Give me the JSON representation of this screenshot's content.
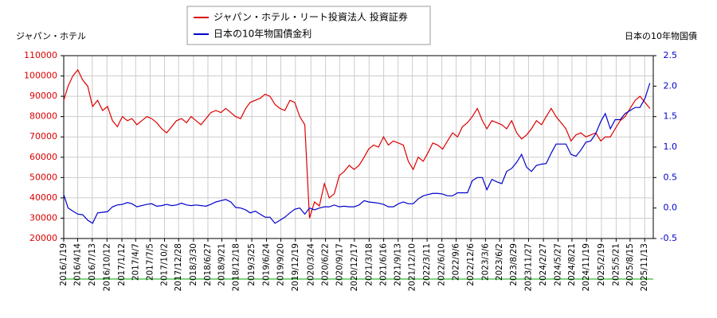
{
  "chart_data": {
    "type": "line",
    "legend_position": "top",
    "grid": true,
    "y_label": "ジャパン・ホテル",
    "y2_label": "日本の10年物国債",
    "xlim": [
      "2016/1/19",
      "2026/1/5"
    ],
    "xticks": [
      "2016/1/19",
      "2016/4/14",
      "2016/7/13",
      "2016/10/12",
      "2017/1/12",
      "2017/4/7",
      "2017/7/5",
      "2017/10/2",
      "2017/12/28",
      "2018/3/30",
      "2018/6/27",
      "2018/9/21",
      "2018/12/18",
      "2019/3/25",
      "2019/6/24",
      "2019/9/20",
      "2019/12/19",
      "2020/3/24",
      "2020/6/22",
      "2020/9/17",
      "2020/12/17",
      "2021/3/18",
      "2021/6/16",
      "2021/9/13",
      "2021/12/10",
      "2022/3/11",
      "2022/6/10",
      "2022/9/6",
      "2022/12/6",
      "2023/3/6",
      "2023/6/2",
      "2023/8/29",
      "2023/11/27",
      "2024/2/27",
      "2024/5/27",
      "2024/8/21",
      "2024/11/19",
      "2025/2/19",
      "2025/5/21",
      "2025/8/15",
      "2025/11/13"
    ],
    "ylim": [
      20000,
      110000
    ],
    "yticks": [
      20000,
      30000,
      40000,
      50000,
      60000,
      70000,
      80000,
      90000,
      100000,
      110000
    ],
    "y2lim": [
      -0.5,
      2.5
    ],
    "y2ticks": [
      -0.5,
      {
        "value": 0,
        "label": "0.0"
      },
      0.5,
      {
        "value": 1,
        "label": "1.0"
      },
      1.5,
      {
        "value": 2,
        "label": "2.0"
      },
      2.5
    ],
    "x": [
      "2016/1/19",
      "2016/2/15",
      "2016/3/15",
      "2016/4/15",
      "2016/5/15",
      "2016/6/15",
      "2016/7/15",
      "2016/8/15",
      "2016/9/15",
      "2016/10/15",
      "2016/11/15",
      "2016/12/15",
      "2017/1/15",
      "2017/2/15",
      "2017/3/15",
      "2017/4/15",
      "2017/5/15",
      "2017/6/15",
      "2017/7/15",
      "2017/8/15",
      "2017/9/15",
      "2017/10/15",
      "2017/11/15",
      "2017/12/15",
      "2018/1/15",
      "2018/2/15",
      "2018/3/15",
      "2018/4/15",
      "2018/5/15",
      "2018/6/15",
      "2018/7/15",
      "2018/8/15",
      "2018/9/15",
      "2018/10/15",
      "2018/11/15",
      "2018/12/15",
      "2019/1/15",
      "2019/2/15",
      "2019/3/15",
      "2019/4/15",
      "2019/5/15",
      "2019/6/15",
      "2019/7/15",
      "2019/8/15",
      "2019/9/15",
      "2019/10/15",
      "2019/11/15",
      "2019/12/15",
      "2020/1/15",
      "2020/2/15",
      "2020/3/15",
      "2020/4/15",
      "2020/5/15",
      "2020/6/15",
      "2020/7/15",
      "2020/8/15",
      "2020/9/15",
      "2020/10/15",
      "2020/11/15",
      "2020/12/15",
      "2021/1/15",
      "2021/2/15",
      "2021/3/15",
      "2021/4/15",
      "2021/5/15",
      "2021/6/15",
      "2021/7/15",
      "2021/8/15",
      "2021/9/15",
      "2021/10/15",
      "2021/11/15",
      "2021/12/15",
      "2022/1/15",
      "2022/2/15",
      "2022/3/15",
      "2022/4/15",
      "2022/5/15",
      "2022/6/15",
      "2022/7/15",
      "2022/8/15",
      "2022/9/15",
      "2022/10/15",
      "2022/11/15",
      "2022/12/15",
      "2023/1/15",
      "2023/2/15",
      "2023/3/15",
      "2023/4/15",
      "2023/5/15",
      "2023/6/15",
      "2023/7/15",
      "2023/8/15",
      "2023/9/15",
      "2023/10/15",
      "2023/11/15",
      "2023/12/15",
      "2024/1/15",
      "2024/2/15",
      "2024/3/15",
      "2024/4/15",
      "2024/5/15",
      "2024/6/15",
      "2024/7/15",
      "2024/8/15",
      "2024/9/15",
      "2024/10/15",
      "2024/11/15",
      "2024/12/15",
      "2025/1/15",
      "2025/2/15",
      "2025/3/15",
      "2025/4/15",
      "2025/5/15",
      "2025/6/15",
      "2025/7/15",
      "2025/8/15",
      "2025/9/15",
      "2025/10/15",
      "2025/11/15",
      "2025/12/15"
    ],
    "series": [
      {
        "name": "ジャパン・ホテル・リート投資法人 投資証券",
        "color": "#dd0000",
        "values": [
          88000,
          95000,
          100000,
          103000,
          98000,
          95000,
          85000,
          88000,
          83000,
          85000,
          78000,
          75000,
          80000,
          78000,
          79000,
          76000,
          78000,
          80000,
          79000,
          77000,
          74000,
          72000,
          75000,
          78000,
          79000,
          77000,
          80000,
          78000,
          76000,
          79000,
          82000,
          83000,
          82000,
          84000,
          82000,
          80000,
          79000,
          84000,
          87000,
          88000,
          89000,
          91000,
          90000,
          86000,
          84000,
          83000,
          88000,
          87000,
          80000,
          76000,
          30000,
          38000,
          36000,
          47000,
          40000,
          42000,
          51000,
          53000,
          56000,
          54000,
          56000,
          60000,
          64000,
          66000,
          65000,
          70000,
          66000,
          68000,
          67000,
          66000,
          58000,
          54000,
          60000,
          58000,
          62000,
          67000,
          66000,
          64000,
          68000,
          72000,
          70000,
          75000,
          77000,
          80000,
          84000,
          78000,
          74000,
          78000,
          77000,
          76000,
          74000,
          78000,
          72000,
          69000,
          71000,
          74000,
          78000,
          76000,
          80000,
          84000,
          80000,
          77000,
          74000,
          68000,
          71000,
          72000,
          70000,
          71000,
          72000,
          68000,
          70000,
          70000,
          74000,
          78000,
          80000,
          84000,
          88000,
          90000,
          87000,
          84000
        ]
      },
      {
        "name": "日本の10年物国債金利",
        "color": "#0000cc",
        "axis": "y2",
        "values": [
          0.22,
          0,
          -0.05,
          -0.1,
          -0.11,
          -0.2,
          -0.25,
          -0.08,
          -0.07,
          -0.06,
          0.02,
          0.05,
          0.06,
          0.09,
          0.07,
          0.02,
          0.04,
          0.06,
          0.07,
          0.03,
          0.04,
          0.06,
          0.04,
          0.05,
          0.08,
          0.05,
          0.04,
          0.05,
          0.04,
          0.03,
          0.06,
          0.1,
          0.12,
          0.14,
          0.1,
          0.01,
          0,
          -0.03,
          -0.08,
          -0.05,
          -0.1,
          -0.15,
          -0.15,
          -0.25,
          -0.2,
          -0.15,
          -0.08,
          -0.02,
          0,
          -0.1,
          0,
          -0.03,
          0,
          0.02,
          0.02,
          0.05,
          0.02,
          0.03,
          0.02,
          0.02,
          0.05,
          0.12,
          0.1,
          0.09,
          0.08,
          0.06,
          0.02,
          0.02,
          0.07,
          0.1,
          0.07,
          0.07,
          0.15,
          0.2,
          0.22,
          0.24,
          0.24,
          0.23,
          0.2,
          0.2,
          0.25,
          0.25,
          0.25,
          0.45,
          0.5,
          0.5,
          0.3,
          0.47,
          0.43,
          0.4,
          0.6,
          0.65,
          0.75,
          0.88,
          0.67,
          0.6,
          0.7,
          0.72,
          0.73,
          0.9,
          1.05,
          1.05,
          1.05,
          0.88,
          0.85,
          0.95,
          1.08,
          1.1,
          1.22,
          1.42,
          1.55,
          1.3,
          1.45,
          1.45,
          1.55,
          1.6,
          1.65,
          1.65,
          1.8,
          2.05
        ]
      }
    ]
  }
}
